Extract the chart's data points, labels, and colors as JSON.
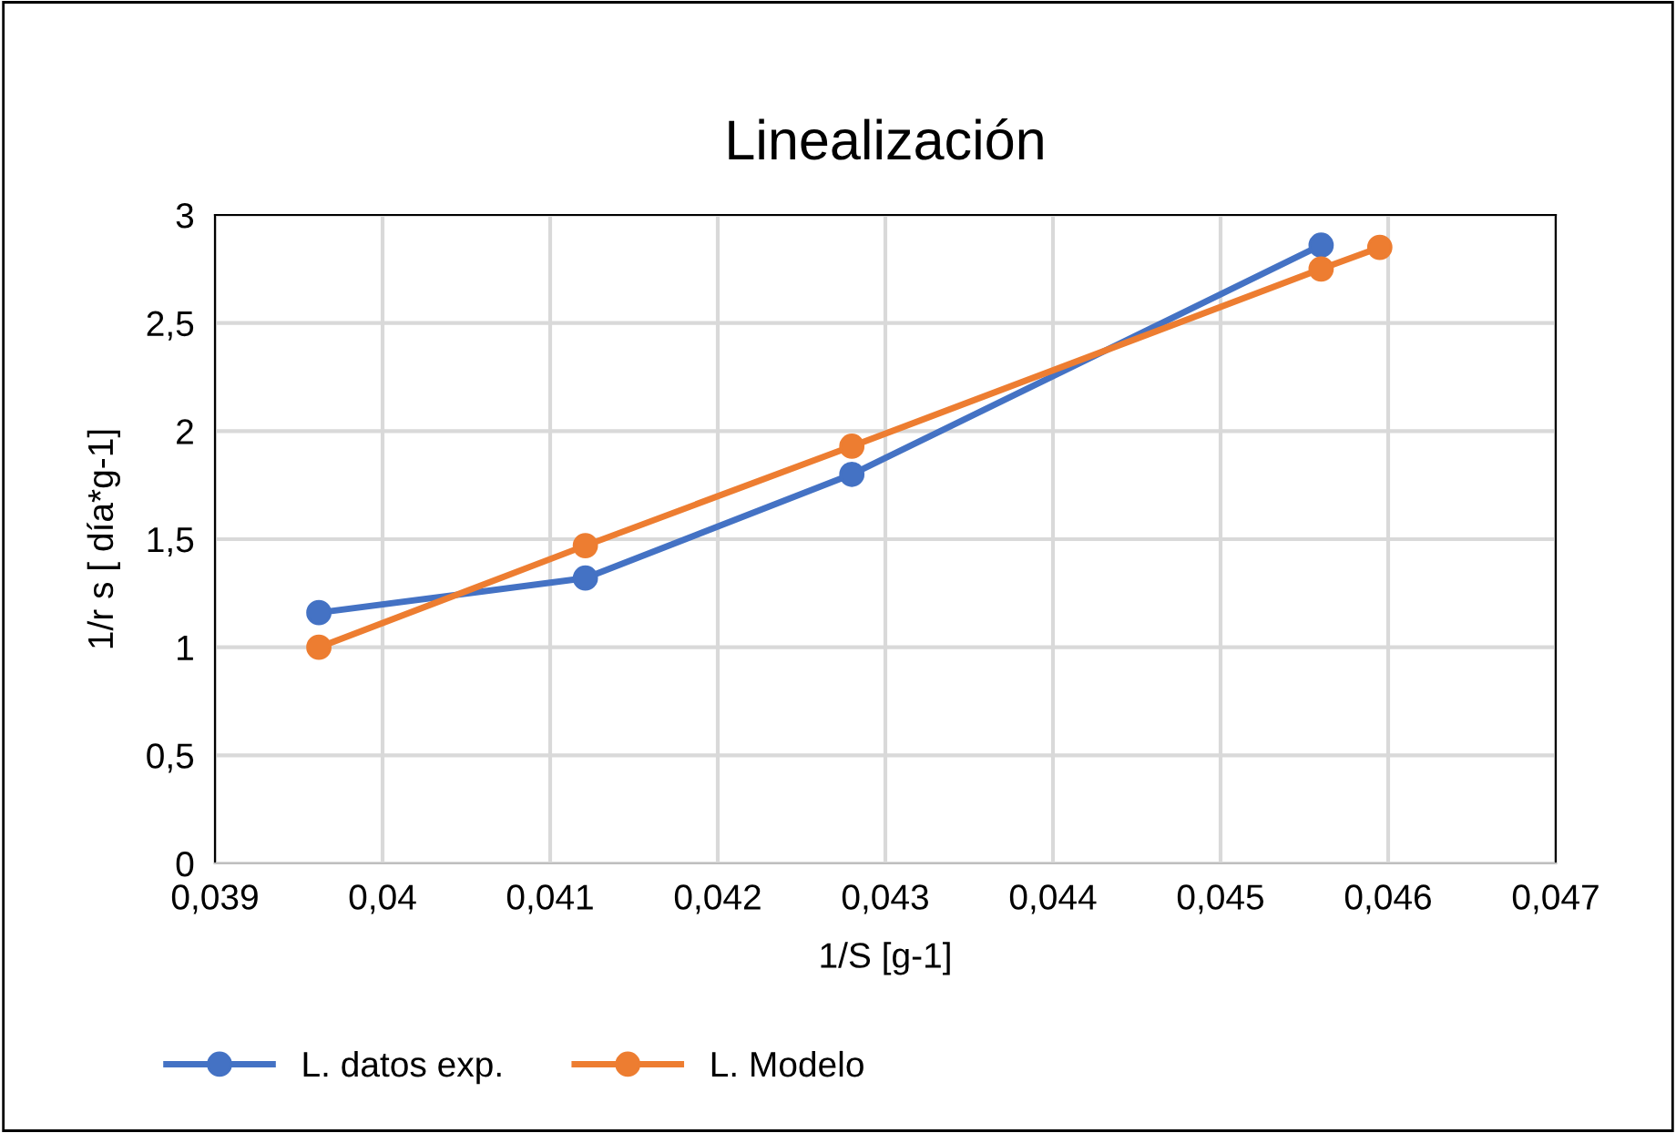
{
  "chart_data": {
    "type": "line",
    "title": "Linealización",
    "xlabel": "1/S [g-1]",
    "ylabel": "1/r s [ día*g-1]",
    "series": [
      {
        "name": "L. datos exp.",
        "color": "#4472c4",
        "x": [
          0.03962,
          0.04121,
          0.0428,
          0.0456
        ],
        "values": [
          1.16,
          1.32,
          1.8,
          2.86
        ]
      },
      {
        "name": "L. Modelo",
        "color": "#ed7d31",
        "x": [
          0.03962,
          0.04121,
          0.0428,
          0.0456,
          0.04595
        ],
        "values": [
          1.0,
          1.47,
          1.93,
          2.75,
          2.85
        ]
      }
    ],
    "xlim": [
      0.039,
      0.047
    ],
    "xticks": [
      {
        "value": 0.039,
        "label": "0,039"
      },
      {
        "value": 0.04,
        "label": "0,04"
      },
      {
        "value": 0.041,
        "label": "0,041"
      },
      {
        "value": 0.042,
        "label": "0,042"
      },
      {
        "value": 0.043,
        "label": "0,043"
      },
      {
        "value": 0.044,
        "label": "0,044"
      },
      {
        "value": 0.045,
        "label": "0,045"
      },
      {
        "value": 0.046,
        "label": "0,046"
      },
      {
        "value": 0.047,
        "label": "0,047"
      }
    ],
    "ylim": [
      0,
      3
    ],
    "yticks": [
      0,
      {
        "value": 0.5,
        "label": "0,5"
      },
      1,
      {
        "value": 1.5,
        "label": "1,5"
      },
      2,
      {
        "value": 2.5,
        "label": "2,5"
      },
      3
    ],
    "grid": true,
    "legend": "bottom left",
    "marker": "circle",
    "line_style": "solid"
  }
}
